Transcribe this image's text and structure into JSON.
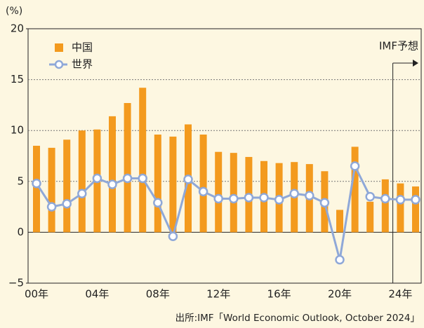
{
  "chart_data": {
    "type": "bar_line",
    "y_label": "(%)",
    "annotation": "IMF予想",
    "source": "出所:IMF「World Economic Outlook, October 2024」",
    "categories": [
      "00年",
      null,
      null,
      null,
      "04年",
      null,
      null,
      null,
      "08年",
      null,
      null,
      null,
      "12年",
      null,
      null,
      null,
      "16年",
      null,
      null,
      null,
      "20年",
      null,
      null,
      null,
      "24年",
      null
    ],
    "series": [
      {
        "name": "中国",
        "type": "bar",
        "color": "#f39a1e",
        "values": [
          8.5,
          8.3,
          9.1,
          10.0,
          10.1,
          11.4,
          12.7,
          14.2,
          9.6,
          9.4,
          10.6,
          9.6,
          7.9,
          7.8,
          7.4,
          7.0,
          6.8,
          6.9,
          6.7,
          6.0,
          2.2,
          8.4,
          3.0,
          5.2,
          4.8,
          4.5
        ]
      },
      {
        "name": "世界",
        "type": "line",
        "color": "#8fa8d8",
        "values": [
          4.8,
          2.5,
          2.8,
          3.8,
          5.3,
          4.7,
          5.3,
          5.3,
          2.9,
          -0.4,
          5.2,
          4.0,
          3.3,
          3.3,
          3.4,
          3.4,
          3.2,
          3.8,
          3.6,
          2.9,
          -2.7,
          6.5,
          3.5,
          3.3,
          3.2,
          3.2
        ]
      }
    ],
    "ylim": [
      -5,
      20
    ],
    "yticks": [
      {
        "value": -5,
        "label": "−5"
      },
      0,
      5,
      10,
      15,
      20
    ],
    "grid": true,
    "legend": "upper left"
  }
}
